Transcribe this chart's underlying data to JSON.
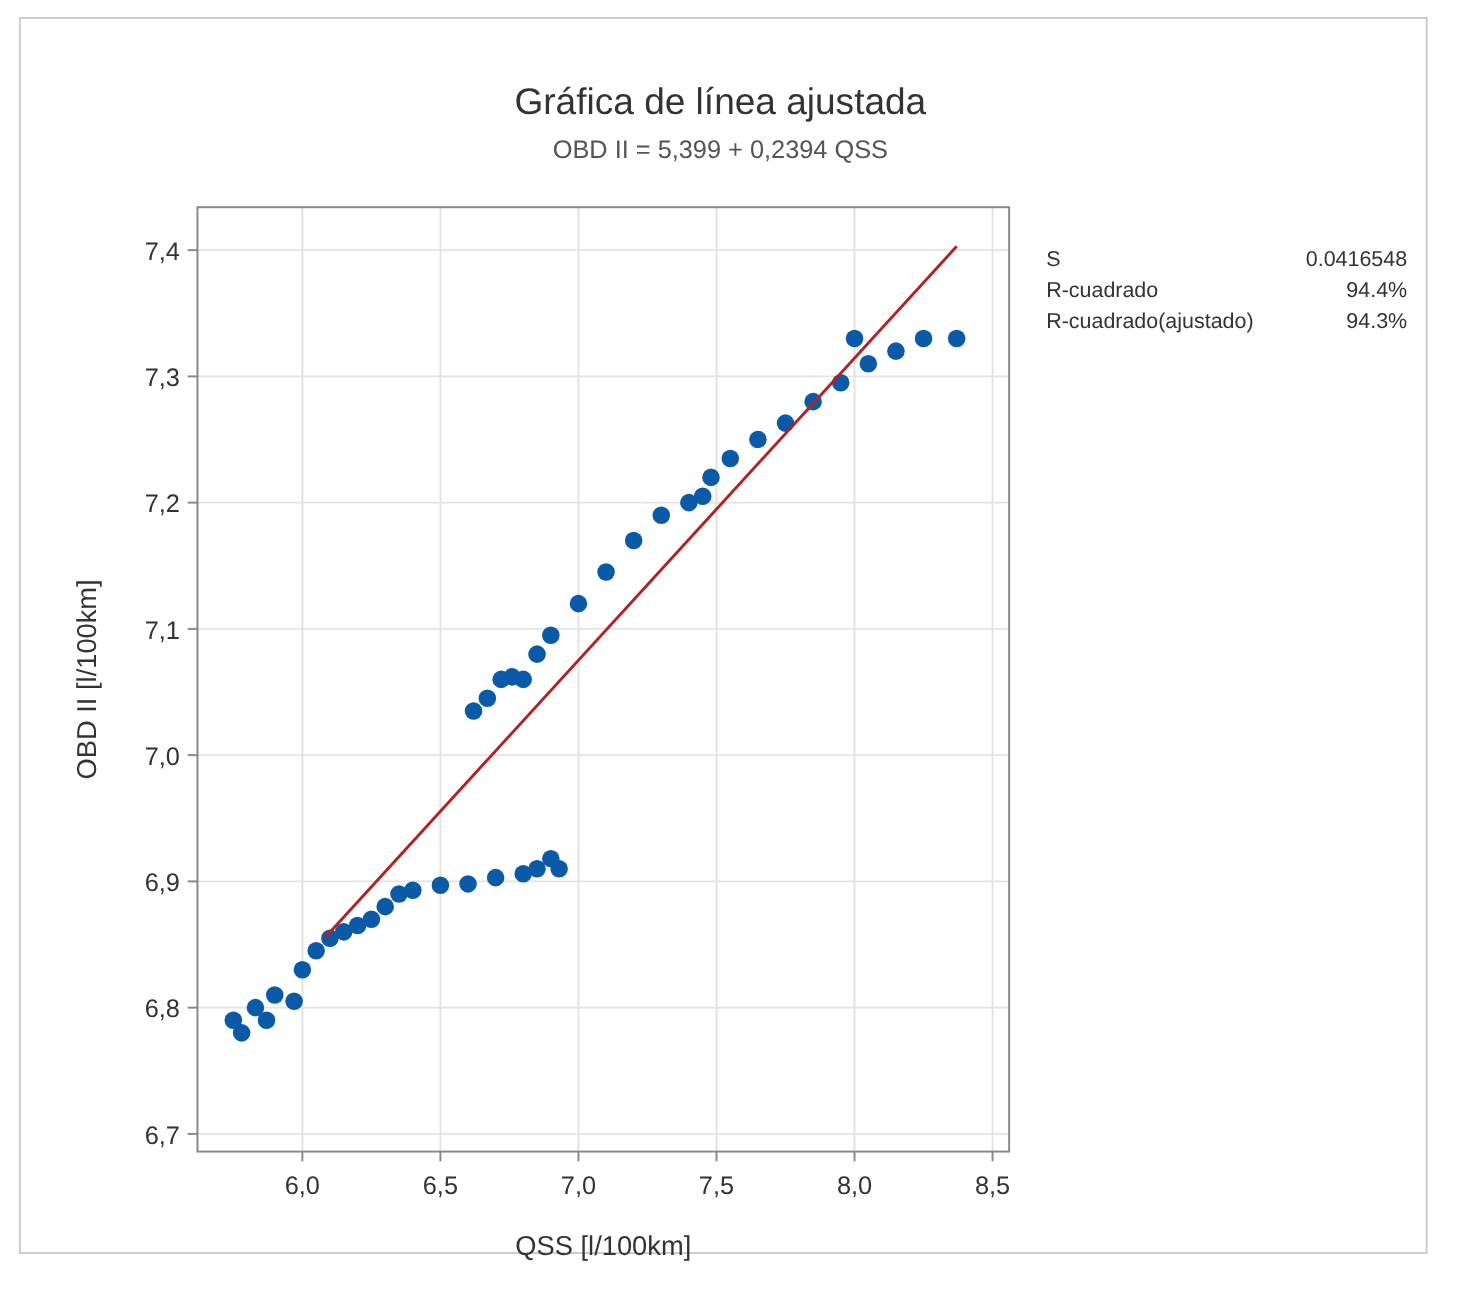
{
  "chart_data": {
    "type": "scatter",
    "title": "Gráfica de línea ajustada",
    "subtitle": "OBD II = 5,399 + 0,2394 QSS",
    "xlabel": "QSS [l/100km]",
    "ylabel": "OBD II [l/100km]",
    "xlim": [
      5.62,
      8.56
    ],
    "ylim": [
      6.686,
      7.434
    ],
    "xticks": [
      {
        "value": 6,
        "label": "6,0"
      },
      {
        "value": 6.5,
        "label": "6,5"
      },
      {
        "value": 7,
        "label": "7,0"
      },
      {
        "value": 7.5,
        "label": "7,5"
      },
      {
        "value": 8,
        "label": "8,0"
      },
      {
        "value": 8.5,
        "label": "8,5"
      }
    ],
    "yticks": [
      {
        "value": 6.7,
        "label": "6,7"
      },
      {
        "value": 6.8,
        "label": "6,8"
      },
      {
        "value": 6.9,
        "label": "6,9"
      },
      {
        "value": 7,
        "label": "7,0"
      },
      {
        "value": 7.1,
        "label": "7,1"
      },
      {
        "value": 7.2,
        "label": "7,2"
      },
      {
        "value": 7.3,
        "label": "7,3"
      },
      {
        "value": 7.4,
        "label": "7,4"
      }
    ],
    "grid": true,
    "series": [
      {
        "color": "#0a5aa8",
        "marker": "circle",
        "x": [
          5.75,
          5.78,
          5.83,
          5.87,
          5.9,
          5.97,
          6.0,
          6.05,
          6.1,
          6.15,
          6.2,
          6.25,
          6.3,
          6.35,
          6.4,
          6.5,
          6.6,
          6.7,
          6.8,
          6.85,
          6.9,
          6.93,
          6.62,
          6.67,
          6.72,
          6.76,
          6.8,
          6.85,
          6.9,
          7.0,
          7.1,
          7.2,
          7.3,
          7.4,
          7.45,
          7.48,
          7.55,
          7.65,
          7.75,
          7.85,
          7.95,
          8.0,
          8.05,
          8.15,
          8.25,
          8.37
        ],
        "values": [
          6.79,
          6.78,
          6.8,
          6.79,
          6.81,
          6.805,
          6.83,
          6.845,
          6.855,
          6.86,
          6.865,
          6.87,
          6.88,
          6.89,
          6.893,
          6.897,
          6.898,
          6.903,
          6.906,
          6.91,
          6.918,
          6.91,
          7.035,
          7.045,
          7.06,
          7.062,
          7.06,
          7.08,
          7.095,
          7.12,
          7.145,
          7.17,
          7.19,
          7.2,
          7.205,
          7.22,
          7.235,
          7.25,
          7.263,
          7.28,
          7.295,
          7.33,
          7.31,
          7.32,
          7.33,
          7.33
        ]
      },
      {
        "type": "line",
        "marker": "none",
        "color": "#b22222",
        "x": [
          6.08,
          8.37
        ],
        "values": [
          6.855,
          7.403
        ]
      }
    ],
    "annotations": [
      "S 0.0416548",
      "R-cuadrado 94.4%",
      "R-cuadrado(ajustado) 94.3%"
    ]
  }
}
